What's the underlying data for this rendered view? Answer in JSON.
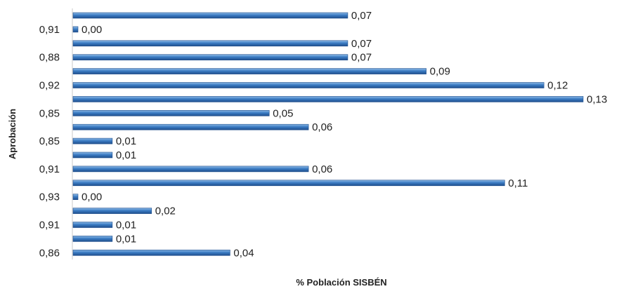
{
  "chart_data": {
    "type": "bar",
    "orientation": "horizontal",
    "categories": [
      "",
      "0,91",
      "",
      "0,88",
      "",
      "0,92",
      "",
      "0,85",
      "",
      "0,85",
      "",
      "0,91",
      "",
      "0,93",
      "",
      "0,91",
      "",
      "0,86"
    ],
    "values": [
      0.07,
      0.0,
      0.07,
      0.07,
      0.09,
      0.12,
      0.13,
      0.05,
      0.06,
      0.01,
      0.01,
      0.06,
      0.11,
      0.0,
      0.02,
      0.01,
      0.01,
      0.04
    ],
    "data_labels": [
      "0,07",
      "0,00",
      "0,07",
      "0,07",
      "0,09",
      "0,12",
      "0,13",
      "0,05",
      "0,06",
      "0,01",
      "0,01",
      "0,06",
      "0,11",
      "0,00",
      "0,02",
      "0,01",
      "0,01",
      "0,04"
    ],
    "xlabel": "% Población SISBÉN",
    "ylabel": "Aprobación",
    "xlim": [
      0,
      0.13
    ],
    "grid": false,
    "legend": "none",
    "colors": {
      "bar": "#3b7cc4",
      "bar_dark": "#1f4e8c",
      "bar_light": "#8fbbe6",
      "axis": "#c8c8c8"
    }
  }
}
